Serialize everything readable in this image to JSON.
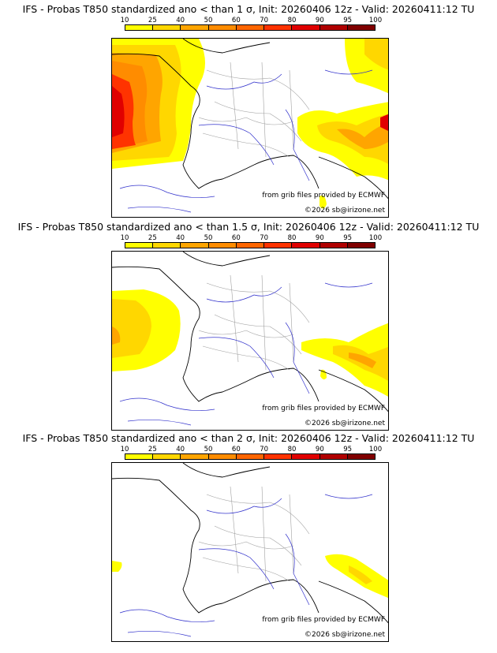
{
  "panels": [
    {
      "title": "IFS - Probas T850  standardized ano < than 1 σ, Init: 20260406 12z - Valid: 20260411:12 TU",
      "sigma": "1 σ"
    },
    {
      "title": "IFS - Probas T850  standardized ano < than 1.5 σ, Init: 20260406 12z - Valid: 20260411:12 TU",
      "sigma": "1.5 σ"
    },
    {
      "title": "IFS - Probas T850  standardized ano < than 2 σ, Init: 20260406 12z - Valid: 20260411:12 TU",
      "sigma": "2 σ"
    }
  ],
  "scale": {
    "ticks": [
      "10",
      "25",
      "40",
      "50",
      "60",
      "70",
      "80",
      "90",
      "95",
      "100"
    ],
    "colors": [
      "#ffff00",
      "#ffd700",
      "#ffa500",
      "#ff8c00",
      "#ff6600",
      "#ff3300",
      "#e00000",
      "#b00000",
      "#800000"
    ]
  },
  "credits": {
    "source": "from grib files provided by ECMWF",
    "copyright": "©2026 sb@irizone.net"
  }
}
